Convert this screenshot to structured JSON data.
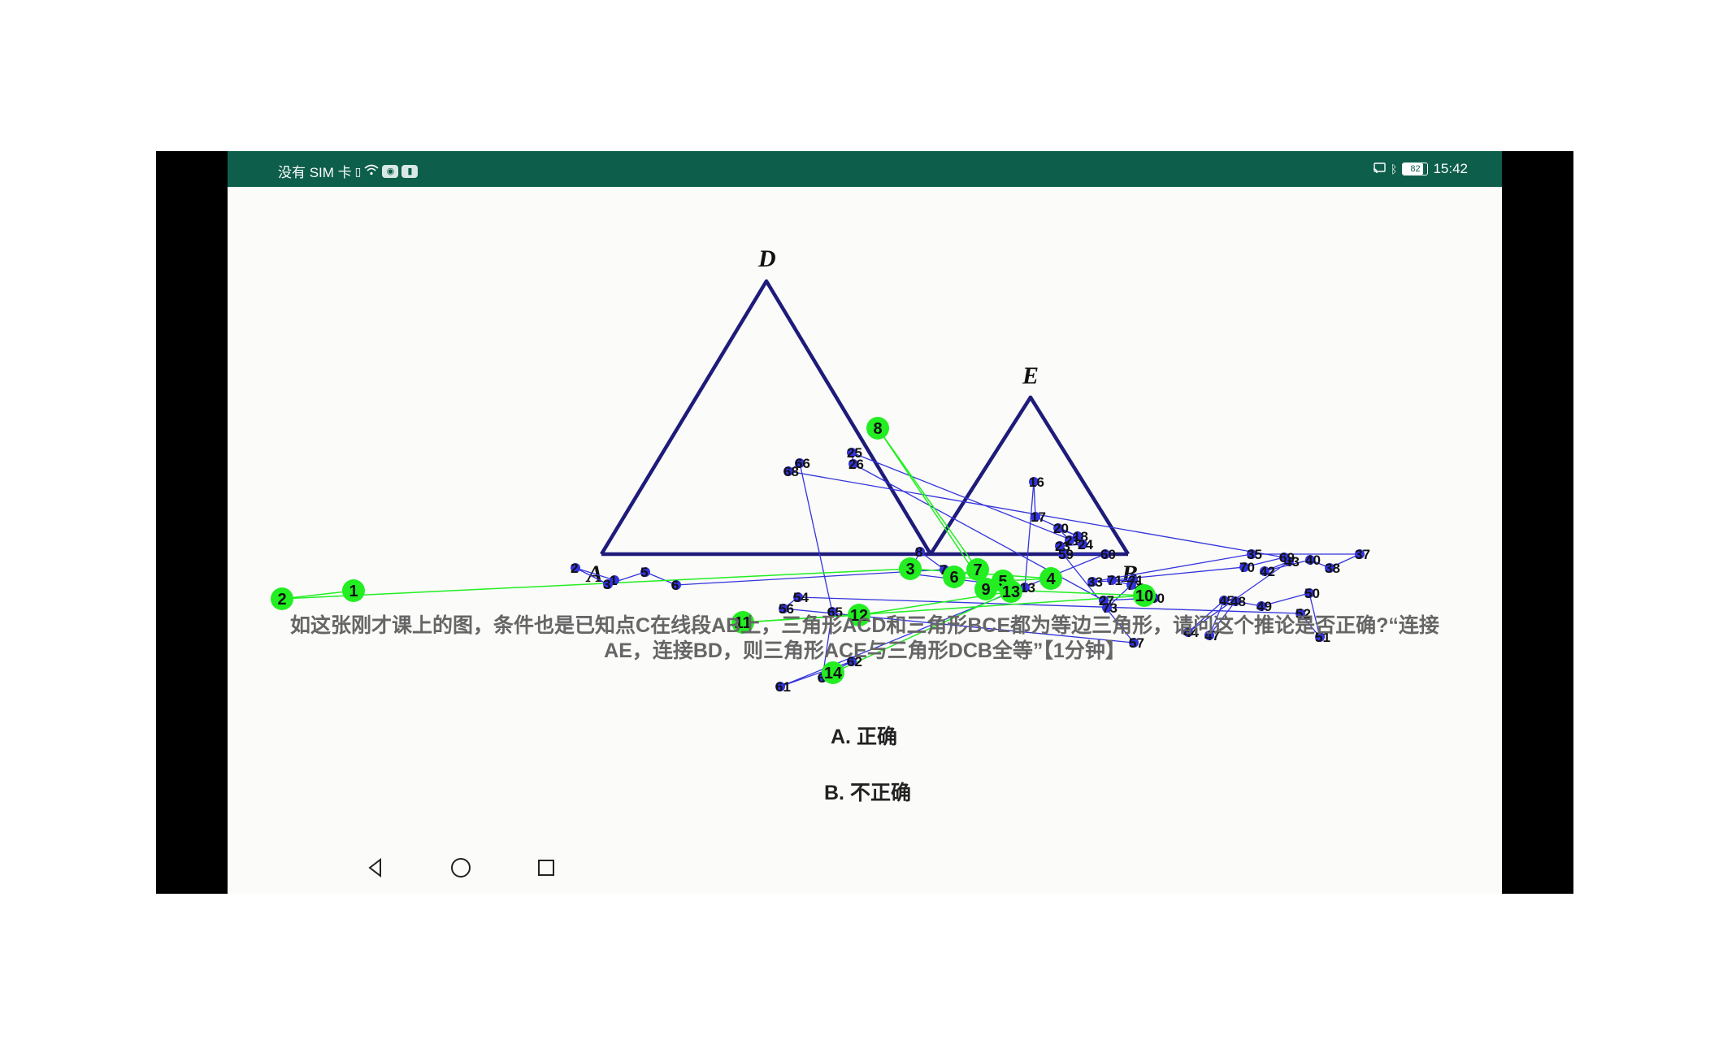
{
  "status_bar": {
    "carrier_text": "没有 SIM 卡",
    "time": "15:42",
    "battery_level": "82",
    "battery_fraction": 0.82,
    "icons": [
      "sim-card-icon",
      "wifi-icon",
      "app-notification-icon",
      "app-notification-icon-2",
      "cast-icon",
      "bluetooth-icon",
      "battery-icon"
    ]
  },
  "diagram": {
    "labels": {
      "A": "A",
      "B": "B",
      "D": "D",
      "E": "E"
    }
  },
  "question": {
    "line1": "如这张刚才课上的图，条件也是已知点C在线段AB上，三角形ACD和三角形BCE都为等边三角形，请问这个推论是否正确?“连接",
    "line2": "AE，连接BD，则三角形ACE与三角形DCB全等”【1分钟】"
  },
  "options": [
    {
      "label": "A. 正确"
    },
    {
      "label": "B. 不正确"
    }
  ],
  "nav_bar": {
    "back_icon": "back-triangle-icon",
    "home_icon": "home-circle-icon",
    "recents_icon": "recents-square-icon"
  },
  "gaze_overlay": {
    "fixation_color": "#22ee22",
    "saccade_color": "#3333dd",
    "fixation_labels": [
      "1",
      "2",
      "3",
      "4",
      "5",
      "6",
      "7",
      "8",
      "9",
      "10",
      "11",
      "12",
      "13",
      "14"
    ],
    "saccade_labels": [
      "1",
      "2",
      "3",
      "5",
      "6",
      "7",
      "8",
      "9",
      "13",
      "16",
      "17",
      "18",
      "20",
      "21",
      "23",
      "24",
      "25",
      "26",
      "27",
      "30",
      "31",
      "33",
      "35",
      "37",
      "38",
      "40",
      "42",
      "43",
      "44",
      "45",
      "47",
      "48",
      "49",
      "50",
      "51",
      "52",
      "54",
      "56",
      "57",
      "59",
      "60",
      "61",
      "62",
      "63",
      "65",
      "66",
      "68",
      "69",
      "70",
      "71",
      "72",
      "73"
    ]
  }
}
